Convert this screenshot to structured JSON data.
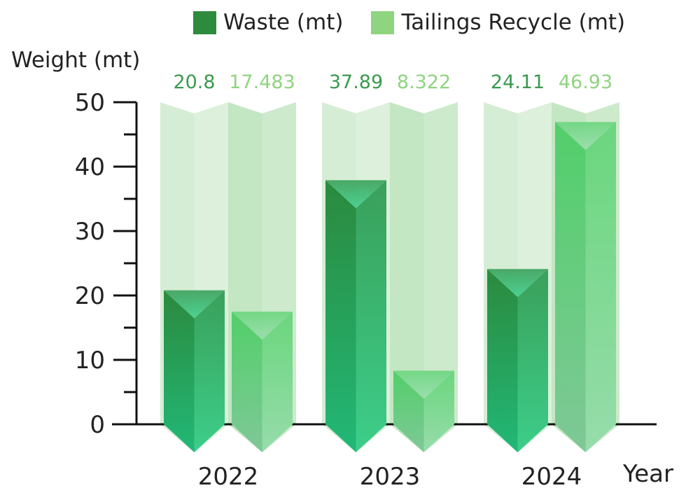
{
  "legend": [
    {
      "label": "Waste (mt)",
      "color": "#2e8b3d"
    },
    {
      "label": "Tailings Recycle (mt)",
      "color": "#8fd47f"
    }
  ],
  "chart_data": {
    "type": "bar",
    "categories": [
      "2022",
      "2023",
      "2024"
    ],
    "series": [
      {
        "name": "Waste (mt)",
        "values": [
          20.8,
          37.89,
          24.11
        ],
        "label_color": "#3a9a4e"
      },
      {
        "name": "Tailings Recycle (mt)",
        "values": [
          17.483,
          8.322,
          46.93
        ],
        "label_color": "#8fd47f"
      }
    ],
    "xlabel": "Year",
    "ylabel": "Weight (mt)",
    "ylim": [
      0,
      50
    ],
    "yticks": [
      0,
      10,
      20,
      30,
      40,
      50
    ],
    "grid": false,
    "legend_position": "top"
  }
}
